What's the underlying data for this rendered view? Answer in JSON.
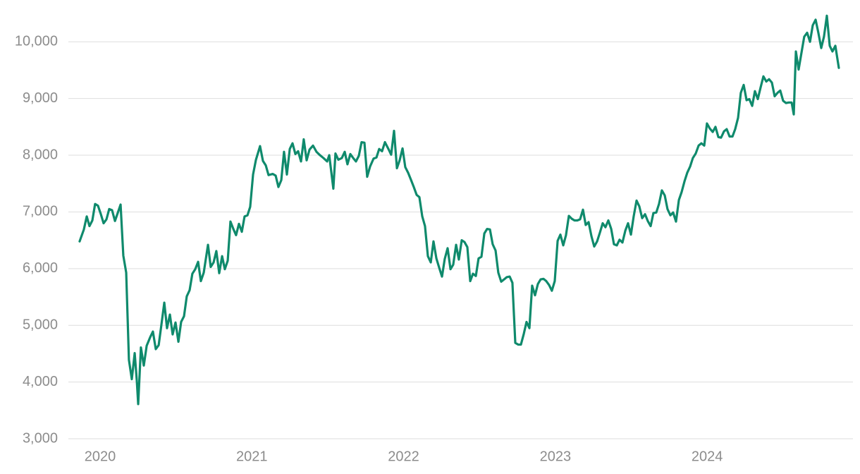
{
  "chart_data": {
    "type": "line",
    "x": [
      2019.865,
      2019.893,
      2019.912,
      2019.93,
      2019.949,
      2019.967,
      2019.986,
      2020.005,
      2020.023,
      2020.042,
      2020.06,
      2020.079,
      2020.098,
      2020.116,
      2020.135,
      2020.153,
      2020.172,
      2020.19,
      2020.209,
      2020.228,
      2020.242,
      2020.251,
      2020.269,
      2020.288,
      2020.307,
      2020.33,
      2020.348,
      2020.367,
      2020.386,
      2020.404,
      2020.423,
      2020.441,
      2020.46,
      2020.478,
      2020.497,
      2020.516,
      2020.534,
      2020.553,
      2020.571,
      2020.59,
      2020.608,
      2020.627,
      2020.646,
      2020.664,
      2020.683,
      2020.711,
      2020.729,
      2020.748,
      2020.766,
      2020.785,
      2020.804,
      2020.822,
      2020.841,
      2020.859,
      2020.878,
      2020.896,
      2020.915,
      2020.934,
      2020.952,
      2020.971,
      2020.989,
      2021.008,
      2021.027,
      2021.054,
      2021.073,
      2021.092,
      2021.11,
      2021.138,
      2021.157,
      2021.175,
      2021.194,
      2021.212,
      2021.231,
      2021.25,
      2021.268,
      2021.287,
      2021.305,
      2021.324,
      2021.342,
      2021.361,
      2021.38,
      2021.403,
      2021.426,
      2021.449,
      2021.472,
      2021.496,
      2021.51,
      2021.537,
      2021.551,
      2021.57,
      2021.593,
      2021.612,
      2021.63,
      2021.649,
      2021.668,
      2021.686,
      2021.705,
      2021.723,
      2021.742,
      2021.76,
      2021.779,
      2021.802,
      2021.821,
      2021.839,
      2021.858,
      2021.877,
      2021.9,
      2021.918,
      2021.937,
      2021.956,
      2021.974,
      2021.993,
      2022.011,
      2022.03,
      2022.048,
      2022.067,
      2022.086,
      2022.104,
      2022.123,
      2022.141,
      2022.16,
      2022.179,
      2022.197,
      2022.216,
      2022.234,
      2022.253,
      2022.271,
      2022.29,
      2022.309,
      2022.327,
      2022.346,
      2022.364,
      2022.383,
      2022.401,
      2022.42,
      2022.439,
      2022.457,
      2022.476,
      2022.494,
      2022.513,
      2022.532,
      2022.55,
      2022.569,
      2022.587,
      2022.606,
      2022.624,
      2022.643,
      2022.662,
      2022.68,
      2022.699,
      2022.717,
      2022.736,
      2022.755,
      2022.773,
      2022.792,
      2022.81,
      2022.829,
      2022.847,
      2022.866,
      2022.885,
      2022.903,
      2022.922,
      2022.94,
      2022.959,
      2022.977,
      2022.996,
      2023.015,
      2023.033,
      2023.052,
      2023.07,
      2023.089,
      2023.108,
      2023.126,
      2023.145,
      2023.163,
      2023.182,
      2023.2,
      2023.219,
      2023.238,
      2023.256,
      2023.275,
      2023.293,
      2023.312,
      2023.33,
      2023.349,
      2023.368,
      2023.386,
      2023.405,
      2023.423,
      2023.442,
      2023.461,
      2023.479,
      2023.498,
      2023.516,
      2023.535,
      2023.553,
      2023.572,
      2023.591,
      2023.609,
      2023.628,
      2023.646,
      2023.665,
      2023.683,
      2023.702,
      2023.721,
      2023.739,
      2023.758,
      2023.776,
      2023.795,
      2023.814,
      2023.832,
      2023.851,
      2023.869,
      2023.888,
      2023.906,
      2023.925,
      2023.944,
      2023.962,
      2023.981,
      2023.999,
      2024.018,
      2024.037,
      2024.055,
      2024.074,
      2024.092,
      2024.111,
      2024.129,
      2024.148,
      2024.167,
      2024.185,
      2024.204,
      2024.222,
      2024.241,
      2024.26,
      2024.278,
      2024.297,
      2024.315,
      2024.334,
      2024.352,
      2024.371,
      2024.39,
      2024.408,
      2024.427,
      2024.445,
      2024.464,
      2024.482,
      2024.501,
      2024.52,
      2024.538,
      2024.557,
      2024.571,
      2024.585,
      2024.603,
      2024.622,
      2024.64,
      2024.659,
      2024.678,
      2024.696,
      2024.715,
      2024.733,
      2024.752,
      2024.77,
      2024.789,
      2024.808,
      2024.826,
      2024.845,
      2024.868
    ],
    "series": [
      {
        "color": "#0f8a6c",
        "values": [
          6480,
          6690,
          6920,
          6750,
          6850,
          7140,
          7110,
          6960,
          6800,
          6870,
          7050,
          7030,
          6840,
          6980,
          7130,
          6230,
          5930,
          4390,
          4050,
          4510,
          4020,
          3610,
          4610,
          4290,
          4640,
          4790,
          4890,
          4580,
          4650,
          5010,
          5400,
          4950,
          5190,
          4840,
          5050,
          4710,
          5060,
          5160,
          5510,
          5620,
          5910,
          5990,
          6120,
          5780,
          5930,
          6420,
          6030,
          6110,
          6310,
          5920,
          6220,
          5990,
          6140,
          6830,
          6700,
          6590,
          6790,
          6650,
          6920,
          6940,
          7090,
          7660,
          7920,
          8160,
          7900,
          7820,
          7650,
          7670,
          7640,
          7440,
          7560,
          8060,
          7660,
          8110,
          8210,
          8020,
          8070,
          7890,
          8280,
          7910,
          8100,
          8170,
          8060,
          8000,
          7950,
          7890,
          8000,
          7410,
          8030,
          7920,
          7950,
          8060,
          7840,
          8020,
          7950,
          7890,
          7990,
          8230,
          8220,
          7620,
          7800,
          7940,
          7960,
          8110,
          8070,
          8230,
          8110,
          8010,
          8430,
          7770,
          7910,
          8120,
          7790,
          7690,
          7570,
          7440,
          7300,
          7260,
          6920,
          6750,
          6220,
          6110,
          6480,
          6180,
          6020,
          5860,
          6170,
          6360,
          5990,
          6070,
          6420,
          6160,
          6500,
          6470,
          6380,
          5780,
          5910,
          5870,
          6180,
          6210,
          6620,
          6700,
          6690,
          6430,
          6320,
          5930,
          5770,
          5810,
          5850,
          5860,
          5750,
          4690,
          4660,
          4660,
          4850,
          5060,
          4950,
          5700,
          5530,
          5730,
          5810,
          5820,
          5780,
          5710,
          5610,
          5780,
          6490,
          6600,
          6410,
          6590,
          6930,
          6880,
          6850,
          6850,
          6870,
          7040,
          6770,
          6820,
          6570,
          6390,
          6480,
          6630,
          6800,
          6730,
          6850,
          6700,
          6430,
          6410,
          6510,
          6460,
          6670,
          6800,
          6600,
          6920,
          7200,
          7100,
          6890,
          6960,
          6840,
          6750,
          6980,
          6990,
          7140,
          7380,
          7290,
          7050,
          6940,
          6990,
          6830,
          7210,
          7350,
          7540,
          7690,
          7800,
          7950,
          8030,
          8170,
          8210,
          8170,
          8560,
          8470,
          8410,
          8500,
          8320,
          8310,
          8420,
          8460,
          8330,
          8330,
          8460,
          8660,
          9100,
          9240,
          8970,
          8990,
          8870,
          9130,
          8990,
          9190,
          9390,
          9300,
          9340,
          9280,
          9040,
          9100,
          9140,
          8960,
          8920,
          8930,
          8930,
          8720,
          9830,
          9510,
          9810,
          10090,
          10160,
          10000,
          10290,
          10390,
          10160,
          9890,
          10090,
          10460,
          9930,
          9830,
          9930,
          9540
        ]
      }
    ],
    "xlim": [
      2019.791,
      2024.961
    ],
    "xticks": [
      2020,
      2021,
      2022,
      2023,
      2024
    ],
    "ylim": [
      3000,
      10700
    ],
    "yticks": [
      {
        "value": 3000,
        "label": "3,000"
      },
      {
        "value": 4000,
        "label": "4,000"
      },
      {
        "value": 5000,
        "label": "5,000"
      },
      {
        "value": 6000,
        "label": "6,000"
      },
      {
        "value": 7000,
        "label": "7,000"
      },
      {
        "value": 8000,
        "label": "8,000"
      },
      {
        "value": 9000,
        "label": "9,000"
      },
      {
        "value": 10000,
        "label": "10,000"
      }
    ],
    "grid": true
  }
}
